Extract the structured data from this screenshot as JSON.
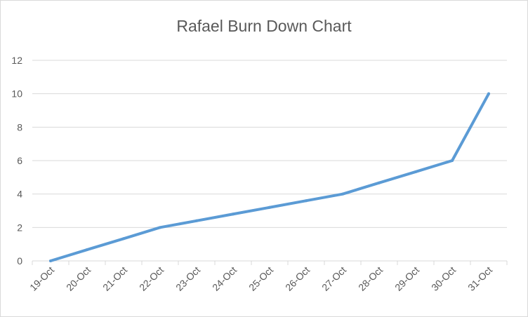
{
  "chart_data": {
    "type": "line",
    "title": "Rafael Burn Down Chart",
    "xlabel": "",
    "ylabel": "",
    "categories": [
      "19-Oct",
      "20-Oct",
      "21-Oct",
      "22-Oct",
      "23-Oct",
      "24-Oct",
      "25-Oct",
      "26-Oct",
      "27-Oct",
      "28-Oct",
      "29-Oct",
      "30-Oct",
      "31-Oct"
    ],
    "series": [
      {
        "values": [
          0,
          0.67,
          1.33,
          2,
          2.4,
          2.8,
          3.2,
          3.6,
          4,
          4.67,
          5.33,
          6,
          10
        ]
      }
    ],
    "ylim": [
      0,
      12
    ],
    "yticks": [
      0,
      2,
      4,
      6,
      8,
      10,
      12
    ],
    "grid": true,
    "legend": "none",
    "colors": {
      "line": "#5b9bd5",
      "grid": "#d9d9d9",
      "text": "#595959"
    }
  }
}
